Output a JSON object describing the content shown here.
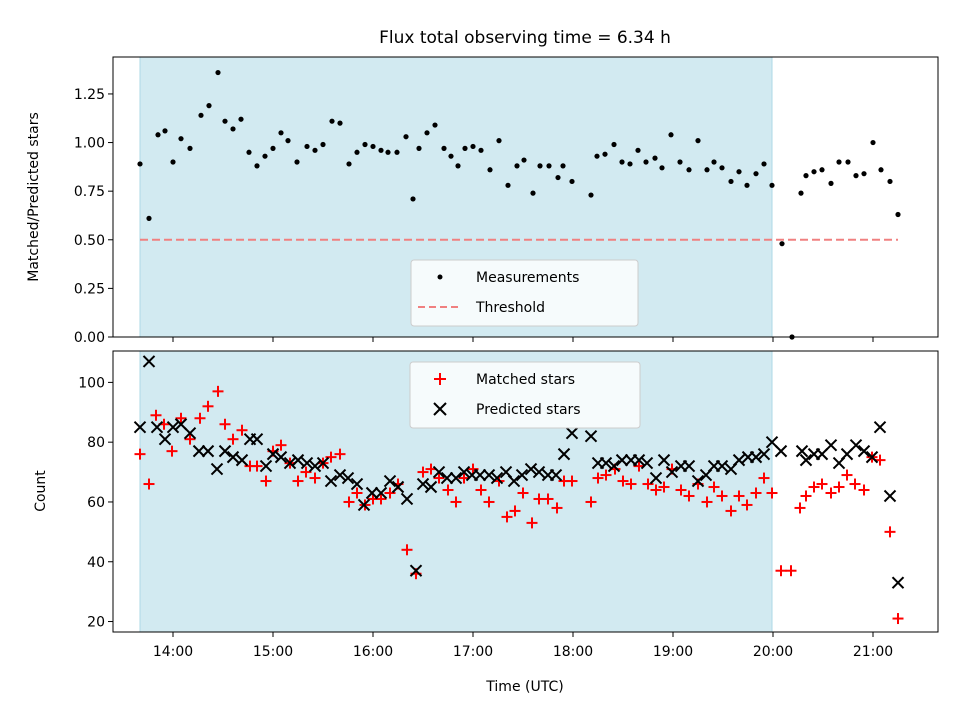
{
  "chart_data": {
    "type": "scatter",
    "title": "Flux total observing time = 6.34 h",
    "xlabel": "Time (UTC)",
    "x_unit": "hours UTC",
    "xlim": [
      13.4,
      21.65
    ],
    "xticks": [
      14,
      15,
      16,
      17,
      18,
      19,
      20,
      21
    ],
    "xtick_labels": [
      "14:00",
      "15:00",
      "16:00",
      "17:00",
      "18:00",
      "19:00",
      "20:00",
      "21:00"
    ],
    "shaded_interval": [
      13.67,
      19.99
    ],
    "shade_color": "#add8e6",
    "top": {
      "ylabel": "Matched/Predicted stars",
      "ylim": [
        0,
        1.44
      ],
      "yticks": [
        0.0,
        0.25,
        0.5,
        0.75,
        1.0,
        1.25
      ],
      "ytick_labels": [
        "0.00",
        "0.25",
        "0.50",
        "0.75",
        "1.00",
        "1.25"
      ],
      "threshold": {
        "value": 0.5,
        "x_range": [
          13.67,
          21.25
        ],
        "color": "#f08080"
      },
      "legend": {
        "position": "lower-center",
        "items": [
          "Measurements",
          "Threshold"
        ]
      },
      "measurements": [
        [
          13.67,
          0.89
        ],
        [
          13.76,
          0.61
        ],
        [
          13.85,
          1.04
        ],
        [
          13.92,
          1.06
        ],
        [
          14.0,
          0.9
        ],
        [
          14.08,
          1.02
        ],
        [
          14.17,
          0.97
        ],
        [
          14.28,
          1.14
        ],
        [
          14.36,
          1.19
        ],
        [
          14.45,
          1.36
        ],
        [
          14.52,
          1.11
        ],
        [
          14.6,
          1.07
        ],
        [
          14.68,
          1.12
        ],
        [
          14.76,
          0.95
        ],
        [
          14.84,
          0.88
        ],
        [
          14.92,
          0.93
        ],
        [
          15.0,
          0.97
        ],
        [
          15.08,
          1.05
        ],
        [
          15.15,
          1.01
        ],
        [
          15.24,
          0.9
        ],
        [
          15.34,
          0.98
        ],
        [
          15.42,
          0.96
        ],
        [
          15.5,
          0.99
        ],
        [
          15.59,
          1.11
        ],
        [
          15.67,
          1.1
        ],
        [
          15.76,
          0.89
        ],
        [
          15.84,
          0.95
        ],
        [
          15.92,
          0.99
        ],
        [
          16.0,
          0.98
        ],
        [
          16.08,
          0.96
        ],
        [
          16.15,
          0.95
        ],
        [
          16.24,
          0.95
        ],
        [
          16.33,
          1.03
        ],
        [
          16.4,
          0.71
        ],
        [
          16.46,
          0.97
        ],
        [
          16.54,
          1.05
        ],
        [
          16.62,
          1.09
        ],
        [
          16.71,
          0.97
        ],
        [
          16.78,
          0.93
        ],
        [
          16.85,
          0.88
        ],
        [
          16.92,
          0.97
        ],
        [
          17.0,
          0.98
        ],
        [
          17.08,
          0.96
        ],
        [
          17.17,
          0.86
        ],
        [
          17.26,
          1.01
        ],
        [
          17.35,
          0.78
        ],
        [
          17.44,
          0.88
        ],
        [
          17.51,
          0.91
        ],
        [
          17.6,
          0.74
        ],
        [
          17.67,
          0.88
        ],
        [
          17.76,
          0.88
        ],
        [
          17.85,
          0.82
        ],
        [
          17.9,
          0.88
        ],
        [
          17.99,
          0.8
        ],
        [
          18.18,
          0.73
        ],
        [
          18.24,
          0.93
        ],
        [
          18.32,
          0.94
        ],
        [
          18.41,
          0.99
        ],
        [
          18.49,
          0.9
        ],
        [
          18.57,
          0.89
        ],
        [
          18.65,
          0.96
        ],
        [
          18.73,
          0.9
        ],
        [
          18.82,
          0.92
        ],
        [
          18.89,
          0.87
        ],
        [
          18.98,
          1.04
        ],
        [
          19.07,
          0.9
        ],
        [
          19.16,
          0.86
        ],
        [
          19.25,
          1.01
        ],
        [
          19.34,
          0.86
        ],
        [
          19.41,
          0.9
        ],
        [
          19.49,
          0.87
        ],
        [
          19.58,
          0.8
        ],
        [
          19.66,
          0.85
        ],
        [
          19.74,
          0.78
        ],
        [
          19.83,
          0.84
        ],
        [
          19.91,
          0.89
        ],
        [
          19.99,
          0.78
        ],
        [
          20.09,
          0.48
        ],
        [
          20.19,
          0.0
        ],
        [
          20.28,
          0.74
        ],
        [
          20.33,
          0.83
        ],
        [
          20.41,
          0.85
        ],
        [
          20.49,
          0.86
        ],
        [
          20.58,
          0.79
        ],
        [
          20.66,
          0.9
        ],
        [
          20.75,
          0.9
        ],
        [
          20.83,
          0.83
        ],
        [
          20.91,
          0.84
        ],
        [
          21.0,
          1.0
        ],
        [
          21.08,
          0.86
        ],
        [
          21.17,
          0.8
        ],
        [
          21.25,
          0.63
        ]
      ]
    },
    "bottom": {
      "ylabel": "Count",
      "ylim": [
        16.5,
        110.5
      ],
      "yticks": [
        20,
        40,
        60,
        80,
        100
      ],
      "ytick_labels": [
        "20",
        "40",
        "60",
        "80",
        "100"
      ],
      "legend": {
        "position": "upper-center",
        "items": [
          "Matched stars",
          "Predicted stars"
        ]
      },
      "series": [
        {
          "name": "Matched stars",
          "marker": "plus",
          "color": "#ff0000",
          "points": [
            [
              13.67,
              76
            ],
            [
              13.76,
              66
            ],
            [
              13.83,
              89
            ],
            [
              13.91,
              86
            ],
            [
              13.99,
              77
            ],
            [
              14.08,
              88
            ],
            [
              14.17,
              81
            ],
            [
              14.27,
              88
            ],
            [
              14.35,
              92
            ],
            [
              14.45,
              97
            ],
            [
              14.52,
              86
            ],
            [
              14.6,
              81
            ],
            [
              14.69,
              84
            ],
            [
              14.77,
              72
            ],
            [
              14.84,
              72
            ],
            [
              14.93,
              67
            ],
            [
              15.0,
              77
            ],
            [
              15.08,
              79
            ],
            [
              15.17,
              73
            ],
            [
              15.25,
              67
            ],
            [
              15.33,
              70
            ],
            [
              15.42,
              68
            ],
            [
              15.5,
              73
            ],
            [
              15.58,
              75
            ],
            [
              15.67,
              76
            ],
            [
              15.76,
              60
            ],
            [
              15.84,
              63
            ],
            [
              15.92,
              59
            ],
            [
              16.0,
              61
            ],
            [
              16.08,
              61
            ],
            [
              16.17,
              63
            ],
            [
              16.25,
              66
            ],
            [
              16.34,
              44
            ],
            [
              16.43,
              36
            ],
            [
              16.5,
              70
            ],
            [
              16.58,
              71
            ],
            [
              16.66,
              68
            ],
            [
              16.75,
              64
            ],
            [
              16.83,
              60
            ],
            [
              16.91,
              68
            ],
            [
              17.0,
              71
            ],
            [
              17.08,
              64
            ],
            [
              17.16,
              60
            ],
            [
              17.26,
              67
            ],
            [
              17.34,
              55
            ],
            [
              17.42,
              57
            ],
            [
              17.5,
              63
            ],
            [
              17.59,
              53
            ],
            [
              17.66,
              61
            ],
            [
              17.75,
              61
            ],
            [
              17.84,
              58
            ],
            [
              17.91,
              67
            ],
            [
              17.99,
              67
            ],
            [
              18.18,
              60
            ],
            [
              18.25,
              68
            ],
            [
              18.33,
              69
            ],
            [
              18.42,
              71
            ],
            [
              18.5,
              67
            ],
            [
              18.58,
              66
            ],
            [
              18.66,
              72
            ],
            [
              18.75,
              66
            ],
            [
              18.83,
              64
            ],
            [
              18.91,
              65
            ],
            [
              18.99,
              71
            ],
            [
              19.08,
              64
            ],
            [
              19.16,
              62
            ],
            [
              19.25,
              66
            ],
            [
              19.34,
              60
            ],
            [
              19.41,
              65
            ],
            [
              19.49,
              62
            ],
            [
              19.58,
              57
            ],
            [
              19.66,
              62
            ],
            [
              19.74,
              59
            ],
            [
              19.83,
              63
            ],
            [
              19.91,
              68
            ],
            [
              19.99,
              63
            ],
            [
              20.08,
              37
            ],
            [
              20.18,
              37
            ],
            [
              20.27,
              58
            ],
            [
              20.33,
              62
            ],
            [
              20.41,
              65
            ],
            [
              20.49,
              66
            ],
            [
              20.58,
              63
            ],
            [
              20.66,
              65
            ],
            [
              20.74,
              69
            ],
            [
              20.82,
              66
            ],
            [
              20.91,
              64
            ],
            [
              20.99,
              75
            ],
            [
              21.07,
              74
            ],
            [
              21.17,
              50
            ],
            [
              21.25,
              21
            ]
          ]
        },
        {
          "name": "Predicted stars",
          "marker": "x",
          "color": "#000000",
          "points": [
            [
              13.67,
              85
            ],
            [
              13.76,
              107
            ],
            [
              13.84,
              85
            ],
            [
              13.92,
              81
            ],
            [
              14.0,
              85
            ],
            [
              14.08,
              86
            ],
            [
              14.17,
              83
            ],
            [
              14.26,
              77
            ],
            [
              14.35,
              77
            ],
            [
              14.44,
              71
            ],
            [
              14.52,
              77
            ],
            [
              14.6,
              75
            ],
            [
              14.69,
              74
            ],
            [
              14.77,
              81
            ],
            [
              14.84,
              81
            ],
            [
              14.93,
              72
            ],
            [
              15.0,
              76
            ],
            [
              15.08,
              75
            ],
            [
              15.17,
              73
            ],
            [
              15.25,
              74
            ],
            [
              15.34,
              73
            ],
            [
              15.42,
              72
            ],
            [
              15.5,
              73
            ],
            [
              15.58,
              67
            ],
            [
              15.67,
              69
            ],
            [
              15.75,
              68
            ],
            [
              15.84,
              66
            ],
            [
              15.91,
              59
            ],
            [
              15.99,
              63
            ],
            [
              16.08,
              63
            ],
            [
              16.17,
              67
            ],
            [
              16.25,
              65
            ],
            [
              16.34,
              61
            ],
            [
              16.43,
              37
            ],
            [
              16.5,
              66
            ],
            [
              16.58,
              65
            ],
            [
              16.66,
              70
            ],
            [
              16.74,
              68
            ],
            [
              16.83,
              68
            ],
            [
              16.91,
              70
            ],
            [
              16.99,
              69
            ],
            [
              17.07,
              69
            ],
            [
              17.16,
              69
            ],
            [
              17.24,
              68
            ],
            [
              17.33,
              70
            ],
            [
              17.41,
              67
            ],
            [
              17.49,
              69
            ],
            [
              17.58,
              71
            ],
            [
              17.66,
              70
            ],
            [
              17.75,
              69
            ],
            [
              17.83,
              69
            ],
            [
              17.91,
              76
            ],
            [
              17.99,
              83
            ],
            [
              18.18,
              82
            ],
            [
              18.25,
              73
            ],
            [
              18.33,
              73
            ],
            [
              18.41,
              72
            ],
            [
              18.49,
              74
            ],
            [
              18.58,
              74
            ],
            [
              18.66,
              74
            ],
            [
              18.74,
              73
            ],
            [
              18.83,
              68
            ],
            [
              18.91,
              74
            ],
            [
              18.99,
              70
            ],
            [
              19.08,
              72
            ],
            [
              19.16,
              72
            ],
            [
              19.25,
              67
            ],
            [
              19.33,
              69
            ],
            [
              19.41,
              72
            ],
            [
              19.49,
              72
            ],
            [
              19.58,
              71
            ],
            [
              19.66,
              74
            ],
            [
              19.75,
              75
            ],
            [
              19.83,
              75
            ],
            [
              19.91,
              76
            ],
            [
              19.99,
              80
            ],
            [
              20.08,
              77
            ],
            [
              20.29,
              77
            ],
            [
              20.33,
              74
            ],
            [
              20.41,
              76
            ],
            [
              20.49,
              76
            ],
            [
              20.58,
              79
            ],
            [
              20.66,
              73
            ],
            [
              20.74,
              76
            ],
            [
              20.83,
              79
            ],
            [
              20.91,
              77
            ],
            [
              20.99,
              75
            ],
            [
              21.07,
              85
            ],
            [
              21.17,
              62
            ],
            [
              21.25,
              33
            ]
          ]
        }
      ]
    }
  }
}
